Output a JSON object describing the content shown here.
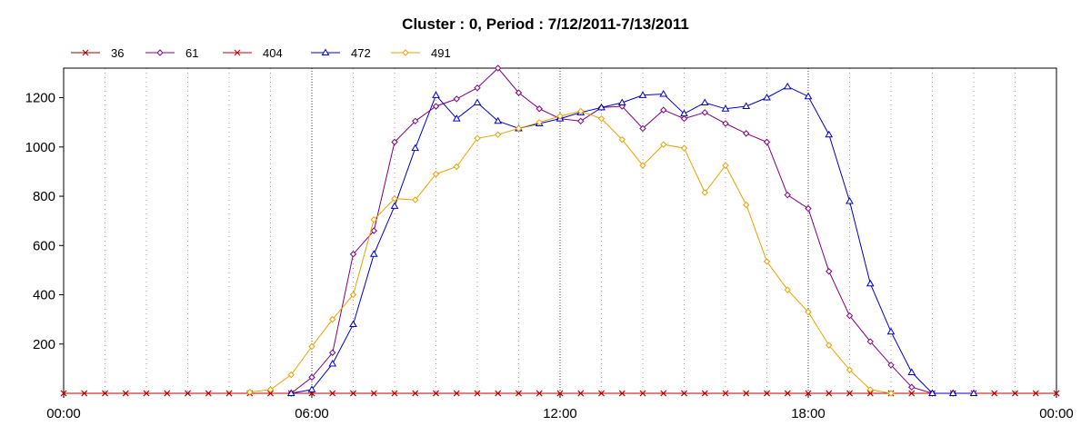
{
  "chart_data": {
    "type": "line",
    "title": "Cluster : 0, Period : 7/12/2011-7/13/2011",
    "xlabel": "",
    "ylabel": "",
    "x_ticks": [
      "00:00",
      "06:00",
      "12:00",
      "18:00",
      "00:00"
    ],
    "x_range_hours": [
      0,
      24
    ],
    "ylim": [
      0,
      1320
    ],
    "y_ticks": [
      200,
      400,
      600,
      800,
      1000,
      1200
    ],
    "grid": true,
    "legend_position": "top-left",
    "series": [
      {
        "name": "36",
        "color": "#990000",
        "marker": "x",
        "x": [
          0,
          0.5,
          1,
          1.5,
          2,
          2.5,
          3,
          3.5,
          4,
          4.5,
          5,
          5.5,
          6,
          6.5,
          7,
          7.5,
          8,
          8.5,
          9,
          9.5,
          10,
          10.5,
          11,
          11.5,
          12,
          12.5,
          13,
          13.5,
          14,
          14.5,
          15,
          15.5,
          16,
          16.5,
          17,
          17.5,
          18,
          18.5,
          19,
          19.5,
          20,
          20.5,
          21,
          21.5,
          22,
          22.5,
          23,
          23.5,
          24
        ],
        "y": [
          0,
          0,
          0,
          0,
          0,
          0,
          0,
          0,
          0,
          0,
          0,
          0,
          0,
          0,
          0,
          0,
          0,
          0,
          0,
          0,
          0,
          0,
          0,
          0,
          0,
          0,
          0,
          0,
          0,
          0,
          0,
          0,
          0,
          0,
          0,
          0,
          0,
          0,
          0,
          0,
          0,
          0,
          0,
          0,
          0,
          0,
          0,
          0,
          0
        ]
      },
      {
        "name": "61",
        "color": "#800080",
        "marker": "diamond",
        "x": [
          5.5,
          6,
          6.5,
          7,
          7.5,
          8,
          8.5,
          9,
          9.5,
          10,
          10.5,
          11,
          11.5,
          12,
          12.5,
          13,
          13.5,
          14,
          14.5,
          15,
          15.5,
          16,
          16.5,
          17,
          17.5,
          18,
          18.5,
          19,
          19.5,
          20,
          20.5,
          21,
          21.5
        ],
        "y": [
          0,
          65,
          165,
          565,
          660,
          1020,
          1105,
          1165,
          1195,
          1240,
          1320,
          1220,
          1155,
          1115,
          1105,
          1160,
          1165,
          1075,
          1150,
          1115,
          1140,
          1095,
          1055,
          1020,
          805,
          750,
          495,
          315,
          210,
          115,
          25,
          0,
          0
        ]
      },
      {
        "name": "404",
        "color": "#c00000",
        "marker": "x",
        "x": [
          0,
          0.5,
          1,
          1.5,
          2,
          2.5,
          3,
          3.5,
          4,
          4.5,
          5,
          5.5,
          6,
          6.5,
          7,
          7.5,
          8,
          8.5,
          9,
          9.5,
          10,
          10.5,
          11,
          11.5,
          12,
          12.5,
          13,
          13.5,
          14,
          14.5,
          15,
          15.5,
          16,
          16.5,
          17,
          17.5,
          18,
          18.5,
          19,
          19.5,
          20,
          20.5,
          21,
          21.5,
          22,
          22.5,
          23,
          23.5,
          24
        ],
        "y": [
          0,
          0,
          0,
          0,
          0,
          0,
          0,
          0,
          0,
          0,
          0,
          0,
          0,
          0,
          0,
          0,
          0,
          0,
          0,
          0,
          0,
          0,
          0,
          0,
          0,
          0,
          0,
          0,
          0,
          0,
          0,
          0,
          0,
          0,
          0,
          0,
          0,
          0,
          0,
          0,
          0,
          0,
          0,
          0,
          0,
          0,
          0,
          0,
          0
        ]
      },
      {
        "name": "472",
        "color": "#0000cc",
        "marker": "triangle",
        "x": [
          5.5,
          6,
          6.5,
          7,
          7.5,
          8,
          8.5,
          9,
          9.5,
          10,
          10.5,
          11,
          11.5,
          12,
          12.5,
          13,
          13.5,
          14,
          14.5,
          15,
          15.5,
          16,
          16.5,
          17,
          17.5,
          18,
          18.5,
          19,
          19.5,
          20,
          20.5,
          21,
          21.5,
          22
        ],
        "y": [
          0,
          15,
          120,
          280,
          565,
          760,
          995,
          1210,
          1115,
          1180,
          1105,
          1075,
          1095,
          1115,
          1140,
          1160,
          1180,
          1210,
          1215,
          1135,
          1180,
          1155,
          1165,
          1200,
          1245,
          1205,
          1050,
          780,
          445,
          250,
          85,
          0,
          0,
          0
        ]
      },
      {
        "name": "491",
        "color": "#e8a200",
        "marker": "diamond",
        "x": [
          4.5,
          5,
          5.5,
          6,
          6.5,
          7,
          7.5,
          8,
          8.5,
          9,
          9.5,
          10,
          10.5,
          11,
          11.5,
          12,
          12.5,
          13,
          13.5,
          14,
          14.5,
          15,
          15.5,
          16,
          16.5,
          17,
          17.5,
          18,
          18.5,
          19,
          19.5,
          20
        ],
        "y": [
          5,
          15,
          75,
          190,
          300,
          400,
          705,
          790,
          785,
          890,
          920,
          1035,
          1050,
          1075,
          1100,
          1125,
          1145,
          1115,
          1030,
          925,
          1010,
          995,
          815,
          925,
          765,
          535,
          420,
          330,
          195,
          95,
          15,
          0
        ]
      }
    ]
  }
}
